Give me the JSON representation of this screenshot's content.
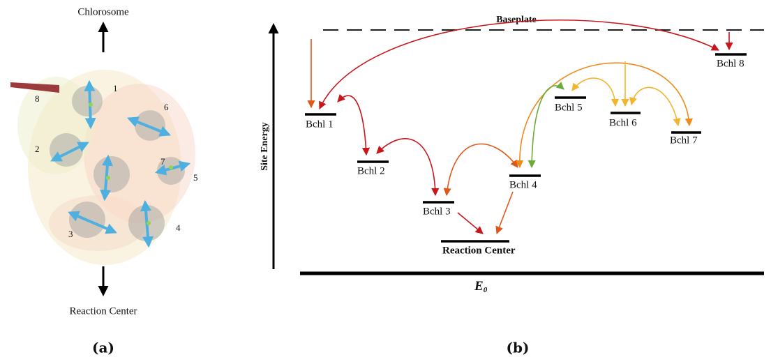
{
  "panel_a": {
    "top_label": "Chlorosome",
    "bottom_label": "Reaction Center",
    "site_numbers": [
      "1",
      "2",
      "3",
      "4",
      "5",
      "6",
      "7",
      "8"
    ],
    "caption": "(a)"
  },
  "panel_b": {
    "baseplate_label": "Baseplate",
    "y_axis_label": "Site Energy",
    "levels": [
      "Bchl 1",
      "Bchl 2",
      "Bchl 3",
      "Bchl 4",
      "Bchl 5",
      "Bchl 6",
      "Bchl 7",
      "Bchl 8"
    ],
    "reaction_center_label": "Reaction Center",
    "baseline_label": {
      "main": "E",
      "subscript": "0"
    },
    "caption": "(b)"
  }
}
